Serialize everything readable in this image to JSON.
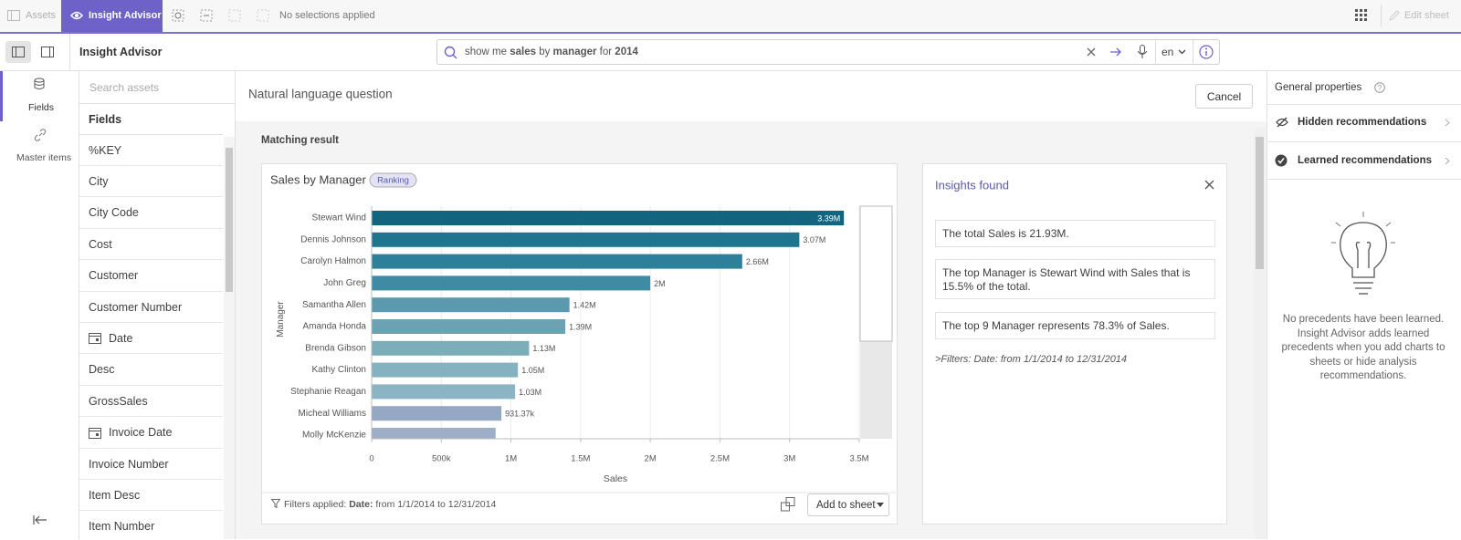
{
  "toolbar": {
    "assets": "Assets",
    "insight_advisor": "Insight Advisor",
    "selections": "No selections applied",
    "edit_sheet": "Edit sheet"
  },
  "header": {
    "title": "Insight Advisor",
    "query": [
      "show me ",
      "sales",
      " by ",
      "manager",
      " for ",
      "2014"
    ],
    "language": "en"
  },
  "rail": {
    "fields": "Fields",
    "master_items": "Master items"
  },
  "assets": {
    "search_placeholder": "Search assets",
    "heading": "Fields",
    "fields": [
      {
        "label": "%KEY"
      },
      {
        "label": "City"
      },
      {
        "label": "City Code"
      },
      {
        "label": "Cost"
      },
      {
        "label": "Customer"
      },
      {
        "label": "Customer Number"
      },
      {
        "label": "Date",
        "calendar": true
      },
      {
        "label": "Desc"
      },
      {
        "label": "GrossSales"
      },
      {
        "label": "Invoice Date",
        "calendar": true
      },
      {
        "label": "Invoice Number"
      },
      {
        "label": "Item Desc"
      },
      {
        "label": "Item Number"
      }
    ]
  },
  "main": {
    "title": "Natural language question",
    "cancel": "Cancel",
    "matching": "Matching result"
  },
  "chart_data": {
    "type": "hbar",
    "title": "Sales by Manager",
    "badge": "Ranking",
    "x_label": "Sales",
    "y_label": "Manager",
    "categories": [
      "Stewart Wind",
      "Dennis Johnson",
      "Carolyn Halmon",
      "John Greg",
      "Samantha Allen",
      "Amanda Honda",
      "Brenda Gibson",
      "Kathy Clinton",
      "Stephanie Reagan",
      "Micheal Williams",
      "Molly McKenzie"
    ],
    "values": [
      3390000,
      3070000,
      2660000,
      2000000,
      1420000,
      1390000,
      1130000,
      1050000,
      1030000,
      931370,
      890000
    ],
    "value_labels": [
      "3.39M",
      "3.07M",
      "2.66M",
      "2M",
      "1.42M",
      "1.39M",
      "1.13M",
      "1.05M",
      "1.03M",
      "931.37k",
      null
    ],
    "colors": [
      "#12657e",
      "#1f7590",
      "#2c8099",
      "#3e8ba3",
      "#5b99ae",
      "#6ca3b4",
      "#7caeba",
      "#85b2c1",
      "#8bb5c4",
      "#94a8c4",
      "#9eaec8"
    ],
    "xlim": [
      0,
      3500000
    ],
    "xticks": [
      0,
      {
        "value": 500000,
        "label": "500k"
      },
      {
        "value": 1000000,
        "label": "1M"
      },
      {
        "value": 1500000,
        "label": "1.5M"
      },
      {
        "value": 2000000,
        "label": "2M"
      },
      {
        "value": 2500000,
        "label": "2.5M"
      },
      {
        "value": 3000000,
        "label": "3M"
      },
      {
        "value": 3500000,
        "label": "3.5M"
      }
    ],
    "grid": true,
    "footer": {
      "filters_label": "Filters applied:",
      "date_label": "Date:",
      "date_range": "from 1/1/2014 to 12/31/2014",
      "add": "Add to sheet"
    }
  },
  "insights": {
    "title": "Insights found",
    "items": [
      "The total Sales is 21.93M.",
      "The top Manager is Stewart Wind with Sales that is 15.5% of the total.",
      "The top 9 Manager represents 78.3% of Sales."
    ],
    "filters": ">Filters: Date: from 1/1/2014 to 12/31/2014"
  },
  "properties": {
    "title": "General properties",
    "hidden": "Hidden recommendations",
    "learned": "Learned recommendations",
    "empty": "No precedents have been learned. Insight Advisor adds learned precedents when you add charts to sheets or hide analysis recommendations."
  }
}
